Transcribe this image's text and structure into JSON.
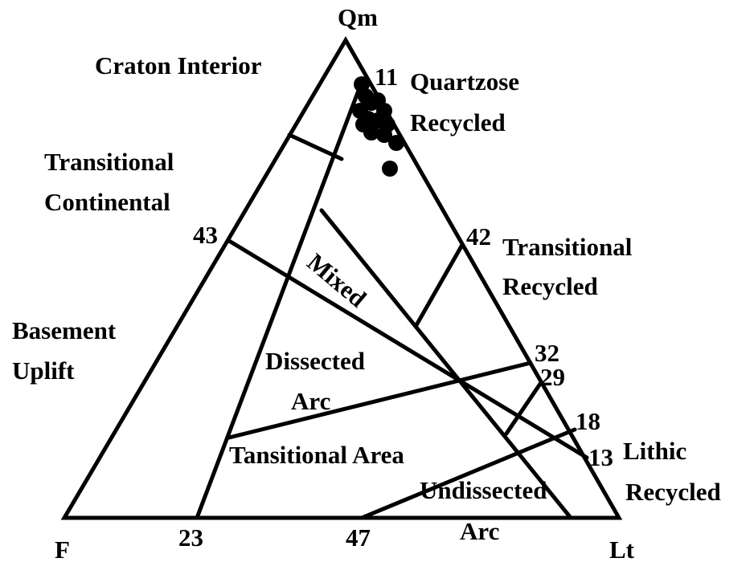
{
  "apices": {
    "top": "Qm",
    "left": "F",
    "right": "Lt"
  },
  "fields": [
    "Craton Interior",
    "Quartzose",
    "Recycled",
    "Transitional",
    "Continental",
    "Transitional",
    "Recycled",
    "Mixed",
    "Basement",
    "Uplift",
    "Dissected",
    "Arc",
    "Tansitional Area",
    "Lithic",
    "Recycled",
    "Undissected",
    "Arc"
  ],
  "boundary_values": [
    "11",
    "43",
    "42",
    "32",
    "29",
    "18",
    "13",
    "23",
    "47"
  ]
}
